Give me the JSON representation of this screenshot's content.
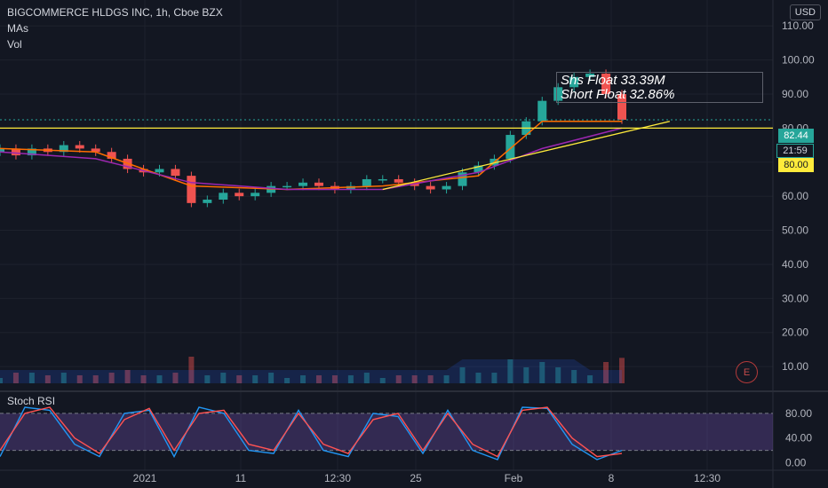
{
  "header": {
    "symbol_line": "BIGCOMMERCE HLDGS INC, 1h, Cboe BZX",
    "indicator_mas": "MAs",
    "indicator_vol": "Vol"
  },
  "currency_button": "USD",
  "annotation": {
    "line1": "Shs Float 33.39M",
    "line2": "Short Float 32.86%"
  },
  "price_tags": {
    "last_price": "82.44",
    "countdown": "21:59",
    "level": "80.00"
  },
  "earnings_badge": "E",
  "rsi_label": "Stoch RSI",
  "colors": {
    "background": "#131722",
    "bullish": "#26a69a",
    "bearish": "#ef5350",
    "horizontal_level": "#ffeb3b",
    "ma_fast": "#ff6d00",
    "ma_slow": "#9c27b0",
    "stoch_k": "#2196f3",
    "stoch_d": "#ff5252"
  },
  "chart_data": [
    {
      "type": "candlestick",
      "title": "BIGCOMMERCE HLDGS INC, 1h, Cboe BZX",
      "y_ticks": [
        "110.00",
        "100.00",
        "90.00",
        "80.00",
        "70.00",
        "60.00",
        "50.00",
        "40.00",
        "30.00",
        "20.00",
        "10.00"
      ],
      "ylim": [
        3,
        115
      ],
      "x_ticks": [
        "2021",
        "11",
        "12:30",
        "25",
        "Feb",
        "8",
        "12:30"
      ],
      "x_tick_index": [
        0,
        1,
        2,
        3,
        4,
        5,
        6
      ],
      "horizontal_level": 80.0,
      "last_price": 82.44,
      "trendline": {
        "start": [
          11.3,
          62
        ],
        "end": [
          13.1,
          82
        ]
      },
      "x_last_bar": 12.8,
      "price_path": [
        [
          8.9,
          74
        ],
        [
          9.0,
          72
        ],
        [
          9.1,
          74
        ],
        [
          9.2,
          73
        ],
        [
          9.3,
          75
        ],
        [
          9.4,
          74
        ],
        [
          9.5,
          73
        ],
        [
          9.6,
          71
        ],
        [
          9.7,
          68
        ],
        [
          9.8,
          67
        ],
        [
          9.9,
          68
        ],
        [
          10.0,
          66
        ],
        [
          10.1,
          58
        ],
        [
          10.2,
          59
        ],
        [
          10.3,
          61
        ],
        [
          10.4,
          60
        ],
        [
          10.5,
          61
        ],
        [
          10.6,
          63
        ],
        [
          10.7,
          63
        ],
        [
          10.8,
          64
        ],
        [
          10.9,
          63
        ],
        [
          11.0,
          62
        ],
        [
          11.1,
          63
        ],
        [
          11.2,
          65
        ],
        [
          11.3,
          65
        ],
        [
          11.4,
          64
        ],
        [
          11.5,
          63
        ],
        [
          11.6,
          62
        ],
        [
          11.7,
          63
        ],
        [
          11.8,
          67
        ],
        [
          11.9,
          69
        ],
        [
          12.0,
          71
        ],
        [
          12.1,
          78
        ],
        [
          12.2,
          82
        ],
        [
          12.3,
          88
        ],
        [
          12.4,
          92
        ],
        [
          12.5,
          95
        ],
        [
          12.6,
          96
        ],
        [
          12.7,
          90
        ],
        [
          12.8,
          82.44
        ]
      ],
      "ma_fast_path": [
        [
          8.9,
          74
        ],
        [
          9.5,
          73
        ],
        [
          10.1,
          63
        ],
        [
          10.7,
          62
        ],
        [
          11.3,
          63
        ],
        [
          11.9,
          66
        ],
        [
          12.3,
          82
        ],
        [
          12.8,
          82
        ]
      ],
      "ma_slow_path": [
        [
          8.9,
          73
        ],
        [
          9.5,
          71
        ],
        [
          10.1,
          64
        ],
        [
          10.7,
          62
        ],
        [
          11.3,
          62
        ],
        [
          11.9,
          67
        ],
        [
          12.3,
          74
        ],
        [
          12.8,
          80
        ]
      ],
      "annotation_text": [
        "Shs Float 33.39M",
        "Short Float 32.86%"
      ]
    },
    {
      "type": "line",
      "title": "Stoch RSI",
      "y_ticks": [
        "80.00",
        "40.00",
        "0.00"
      ],
      "ylim": [
        -5,
        100
      ],
      "bands": [
        80,
        20
      ],
      "series": [
        {
          "values": [
            10,
            90,
            85,
            30,
            10,
            80,
            85,
            10,
            90,
            80,
            20,
            15,
            85,
            20,
            10,
            80,
            75,
            15,
            85,
            20,
            5,
            90,
            88,
            30,
            5,
            20
          ]
        },
        {
          "values": [
            20,
            80,
            90,
            40,
            15,
            70,
            88,
            20,
            80,
            85,
            30,
            20,
            80,
            30,
            15,
            70,
            80,
            20,
            80,
            30,
            10,
            85,
            90,
            40,
            10,
            15
          ]
        }
      ]
    }
  ]
}
